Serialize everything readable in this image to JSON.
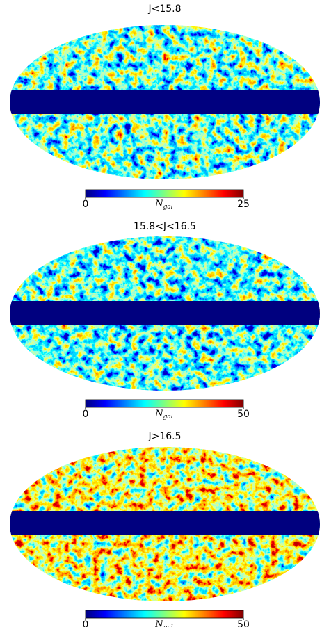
{
  "panels": [
    {
      "title": "J<15.8",
      "colorbar": {
        "label": "N",
        "label_sub": "gal",
        "lim": [
          0,
          25
        ],
        "ticks": [
          0,
          25
        ]
      }
    },
    {
      "title": "15.8<J<16.5",
      "colorbar": {
        "label": "N",
        "label_sub": "gal",
        "lim": [
          0,
          50
        ],
        "ticks": [
          0,
          50
        ]
      }
    },
    {
      "title": "J>16.5",
      "colorbar": {
        "label": "N",
        "label_sub": "gal",
        "lim": [
          0,
          50
        ],
        "ticks": [
          0,
          50
        ]
      }
    }
  ]
}
